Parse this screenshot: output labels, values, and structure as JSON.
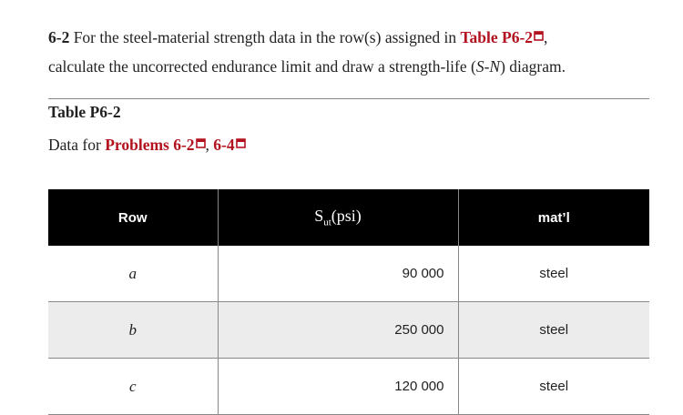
{
  "problem": {
    "number": "6-2",
    "text_before": "For the steel-material strength data in the row(s) assigned in",
    "link": "Table P6-2",
    "text_after_link": ",",
    "line2_before": "calculate the uncorrected endurance limit and draw a strength-life (",
    "sn": "S-N",
    "line2_after": ") diagram."
  },
  "table": {
    "caption": "Table P6-2",
    "description_prefix": "Data for",
    "links": [
      "Problems 6-2",
      "6-4"
    ],
    "separator": ",",
    "header": {
      "row": "Row",
      "strength_symbol": "S",
      "strength_subscript": "ut",
      "strength_unit": "(psi)",
      "material": "mat’l"
    },
    "rows": [
      [
        "a",
        "90 000",
        "steel"
      ],
      [
        "b",
        "250 000",
        "steel"
      ],
      [
        "c",
        "120 000",
        "steel"
      ]
    ]
  }
}
